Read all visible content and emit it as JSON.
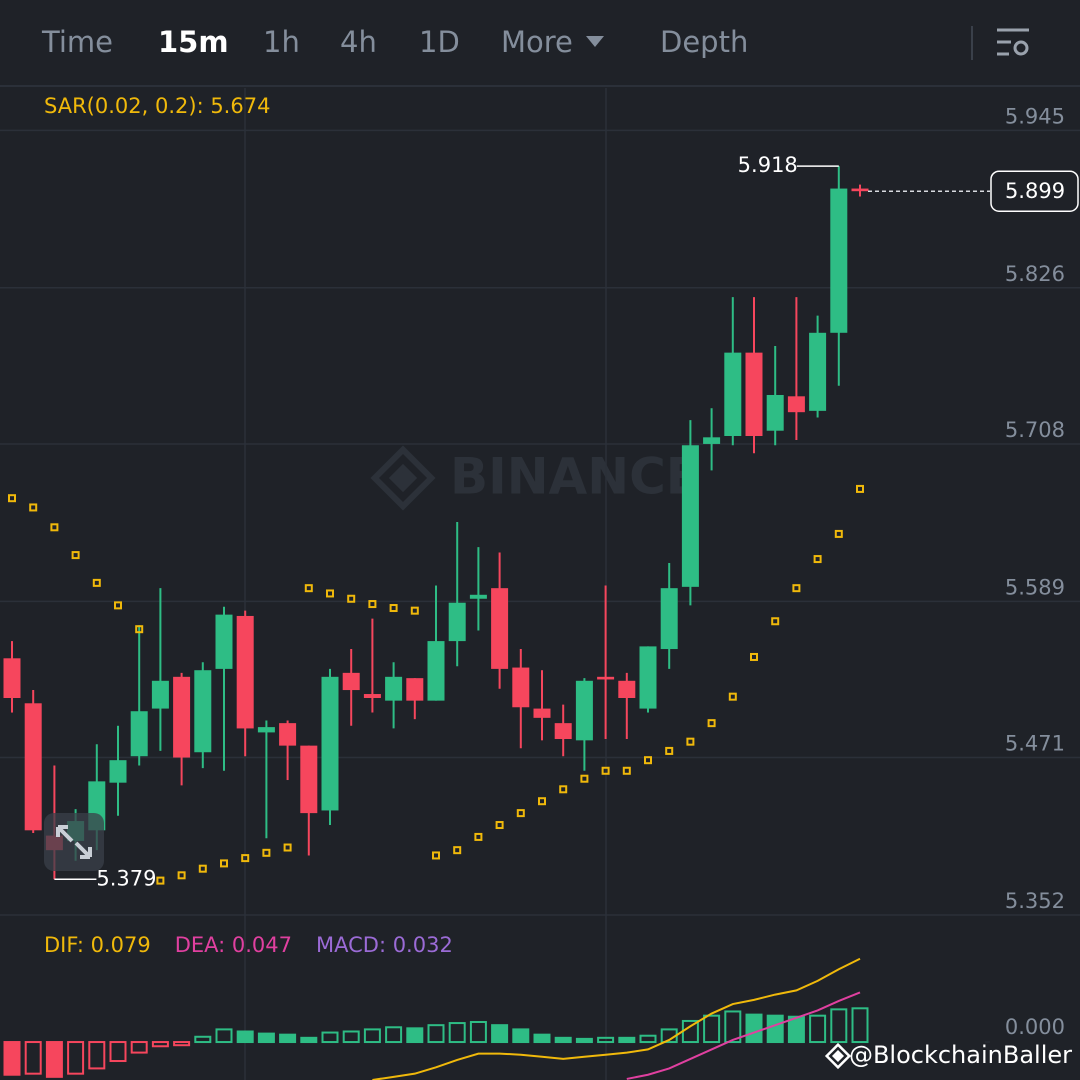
{
  "tabs": [
    "Time",
    "15m",
    "1h",
    "4h",
    "1D",
    "More",
    "Depth"
  ],
  "active_tab": "15m",
  "watermark": "BINANCE",
  "credit": "@BlockchainBaller",
  "chart_data": [
    {
      "type": "candlestick",
      "legend": "SAR(0.02, 0.2): 5.674",
      "up_color": "#2ebd85",
      "down_color": "#f6465d",
      "sar_color": "#f0b90b",
      "ylim": [
        5.352,
        5.977
      ],
      "yticks": [
        5.352,
        5.471,
        5.589,
        5.708,
        5.826,
        5.945
      ],
      "grid": true,
      "high_index": 39,
      "low_index": 2,
      "open": [
        5.546,
        5.512,
        5.412,
        5.408,
        5.416,
        5.452,
        5.472,
        5.508,
        5.532,
        5.475,
        5.538,
        5.578,
        5.49,
        5.497,
        5.48,
        5.431,
        5.535,
        5.519,
        5.514,
        5.531,
        5.514,
        5.559,
        5.591,
        5.599,
        5.539,
        5.508,
        5.497,
        5.484,
        5.532,
        5.529,
        5.508,
        5.553,
        5.6,
        5.708,
        5.714,
        5.777,
        5.718,
        5.744,
        5.733,
        5.792,
        5.901
      ],
      "high": [
        5.559,
        5.522,
        5.465,
        5.432,
        5.481,
        5.495,
        5.571,
        5.599,
        5.535,
        5.543,
        5.585,
        5.582,
        5.499,
        5.499,
        5.48,
        5.538,
        5.553,
        5.576,
        5.543,
        5.531,
        5.601,
        5.649,
        5.63,
        5.626,
        5.553,
        5.537,
        5.511,
        5.531,
        5.601,
        5.535,
        5.555,
        5.618,
        5.726,
        5.735,
        5.819,
        5.819,
        5.782,
        5.819,
        5.805,
        5.918,
        5.904
      ],
      "low": [
        5.505,
        5.414,
        5.379,
        5.393,
        5.401,
        5.427,
        5.465,
        5.476,
        5.45,
        5.463,
        5.461,
        5.472,
        5.41,
        5.454,
        5.397,
        5.42,
        5.495,
        5.505,
        5.493,
        5.5,
        5.514,
        5.54,
        5.567,
        5.523,
        5.478,
        5.484,
        5.472,
        5.461,
        5.485,
        5.485,
        5.505,
        5.538,
        5.586,
        5.688,
        5.707,
        5.701,
        5.707,
        5.711,
        5.728,
        5.752,
        5.895
      ],
      "close": [
        5.516,
        5.416,
        5.401,
        5.423,
        5.453,
        5.469,
        5.506,
        5.529,
        5.471,
        5.537,
        5.579,
        5.493,
        5.494,
        5.48,
        5.429,
        5.532,
        5.522,
        5.516,
        5.532,
        5.514,
        5.559,
        5.588,
        5.594,
        5.538,
        5.509,
        5.501,
        5.485,
        5.529,
        5.53,
        5.516,
        5.555,
        5.599,
        5.707,
        5.713,
        5.777,
        5.714,
        5.745,
        5.732,
        5.792,
        5.901,
        5.899
      ],
      "sar": [
        5.667,
        5.66,
        5.645,
        5.624,
        5.603,
        5.586,
        5.568,
        5.378,
        5.382,
        5.387,
        5.391,
        5.395,
        5.399,
        5.403,
        5.599,
        5.595,
        5.591,
        5.587,
        5.584,
        5.582,
        5.397,
        5.401,
        5.411,
        5.42,
        5.429,
        5.438,
        5.447,
        5.455,
        5.461,
        5.461,
        5.469,
        5.476,
        5.483,
        5.497,
        5.517,
        5.547,
        5.574,
        5.599,
        5.621,
        5.64,
        5.674
      ]
    },
    {
      "type": "macd",
      "ylim": [
        -0.036,
        0.111
      ],
      "yticks": [
        {
          "value": 0,
          "label": "0.000"
        }
      ],
      "up_color": "#2ebd85",
      "down_color": "#f6465d",
      "histogram_name": "MACD: 0.032",
      "histogram_label_color": "#9b6bd6",
      "histogram": [
        -0.031,
        -0.03,
        -0.033,
        -0.03,
        -0.025,
        -0.018,
        -0.01,
        -0.004,
        -0.003,
        0.005,
        0.012,
        0.01,
        0.008,
        0.007,
        0.004,
        0.009,
        0.01,
        0.012,
        0.014,
        0.013,
        0.016,
        0.018,
        0.019,
        0.016,
        0.012,
        0.007,
        0.004,
        0.003,
        0.004,
        0.004,
        0.006,
        0.012,
        0.02,
        0.025,
        0.029,
        0.026,
        0.025,
        0.024,
        0.025,
        0.031,
        0.032
      ],
      "series": [
        {
          "name": "DIF: 0.079",
          "color": "#f0b90b",
          "values": [
            null,
            null,
            null,
            null,
            null,
            null,
            null,
            null,
            null,
            null,
            null,
            null,
            null,
            null,
            null,
            null,
            null,
            -0.036,
            -0.033,
            -0.03,
            -0.024,
            -0.017,
            -0.011,
            -0.011,
            -0.012,
            -0.014,
            -0.016,
            -0.014,
            -0.012,
            -0.01,
            -0.007,
            0.002,
            0.015,
            0.027,
            0.036,
            0.04,
            0.045,
            0.049,
            0.058,
            0.069,
            0.079
          ]
        },
        {
          "name": "DEA: 0.047",
          "color": "#e040a0",
          "values": [
            null,
            null,
            null,
            null,
            null,
            null,
            null,
            null,
            null,
            null,
            null,
            null,
            null,
            null,
            null,
            null,
            null,
            null,
            null,
            null,
            null,
            null,
            null,
            null,
            null,
            null,
            null,
            null,
            null,
            -0.035,
            -0.031,
            -0.025,
            -0.016,
            -0.007,
            0.002,
            0.009,
            0.016,
            0.023,
            0.03,
            0.039,
            0.047
          ]
        }
      ]
    }
  ]
}
